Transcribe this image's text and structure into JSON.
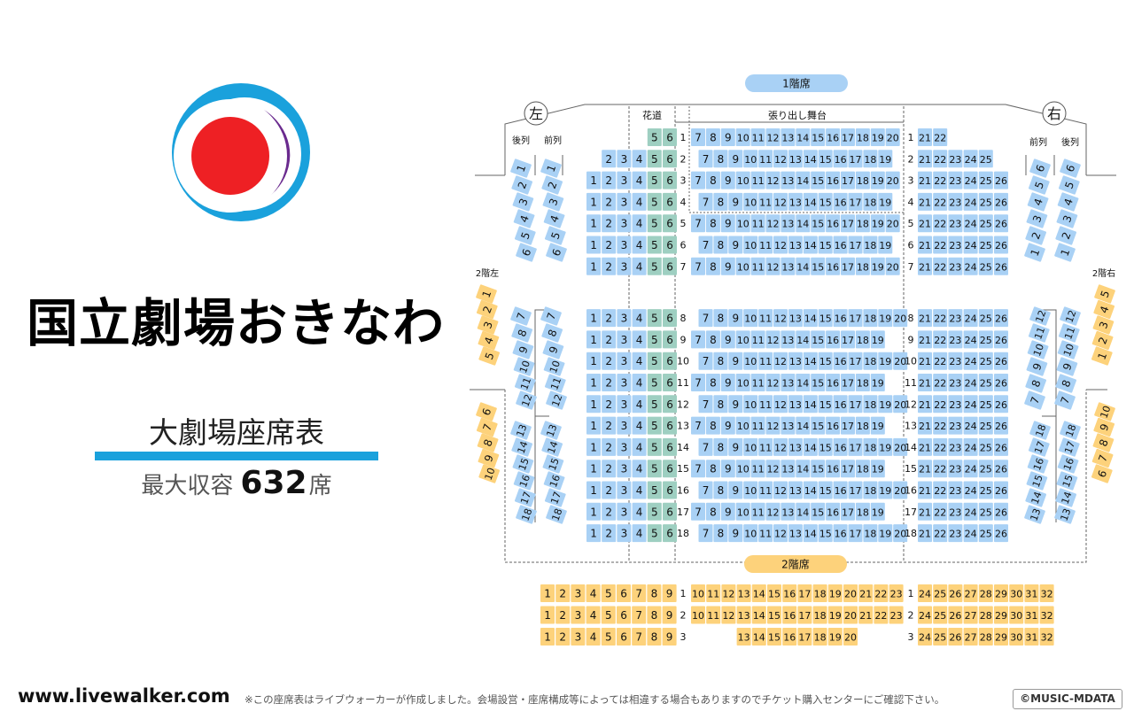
{
  "venue_name": "国立劇場おきなわ",
  "chart_title": "大劇場座席表",
  "capacity": {
    "label": "最大収容",
    "number": "632",
    "unit": "席"
  },
  "site": "www.livewalker.com",
  "note": "※この座席表はライブウォーカーが作成しました。会場設営・座席構成等によっては相違する場合もありますのでチケット購入センターにご確認下さい。",
  "copyright": "©MUSIC-MDATA",
  "colors": {
    "blue": "#a9d1f5",
    "teal": "#9ecfc1",
    "yellow": "#fdd27b",
    "logo_blue": "#1aa1dc",
    "logo_purple": "#6a2a8e",
    "logo_red": "#ee2024"
  },
  "labels": {
    "floor1": "1階席",
    "floor2": "2階席",
    "hanamichi": "花道",
    "stage": "張り出し舞台",
    "left": "左",
    "right": "右",
    "rear": "後列",
    "front": "前列",
    "floor2_left": "2階左",
    "floor2_right": "2階右"
  },
  "floor1_rows": [
    {
      "row": "1",
      "left": [
        "5",
        "6"
      ],
      "center": [
        "7",
        "8",
        "9",
        "10",
        "11",
        "12",
        "13",
        "14",
        "15",
        "16",
        "17",
        "18",
        "19",
        "20"
      ],
      "right": [
        "21",
        "22"
      ]
    },
    {
      "row": "2",
      "left": [
        "2",
        "3",
        "4",
        "5",
        "6"
      ],
      "center": [
        "7",
        "8",
        "9",
        "10",
        "11",
        "12",
        "13",
        "14",
        "15",
        "16",
        "17",
        "18",
        "19"
      ],
      "right": [
        "21",
        "22",
        "23",
        "24",
        "25"
      ]
    },
    {
      "row": "3",
      "left": [
        "1",
        "2",
        "3",
        "4",
        "5",
        "6"
      ],
      "center": [
        "7",
        "8",
        "9",
        "10",
        "11",
        "12",
        "13",
        "14",
        "15",
        "16",
        "17",
        "18",
        "19",
        "20"
      ],
      "right": [
        "21",
        "22",
        "23",
        "24",
        "25",
        "26"
      ]
    },
    {
      "row": "4",
      "left": [
        "1",
        "2",
        "3",
        "4",
        "5",
        "6"
      ],
      "center": [
        "7",
        "8",
        "9",
        "10",
        "11",
        "12",
        "13",
        "14",
        "15",
        "16",
        "17",
        "18",
        "19"
      ],
      "right": [
        "21",
        "22",
        "23",
        "24",
        "25",
        "26"
      ]
    },
    {
      "row": "5",
      "left": [
        "1",
        "2",
        "3",
        "4",
        "5",
        "6"
      ],
      "center": [
        "7",
        "8",
        "9",
        "10",
        "11",
        "12",
        "13",
        "14",
        "15",
        "16",
        "17",
        "18",
        "19",
        "20"
      ],
      "right": [
        "21",
        "22",
        "23",
        "24",
        "25",
        "26"
      ]
    },
    {
      "row": "6",
      "left": [
        "1",
        "2",
        "3",
        "4",
        "5",
        "6"
      ],
      "center": [
        "7",
        "8",
        "9",
        "10",
        "11",
        "12",
        "13",
        "14",
        "15",
        "16",
        "17",
        "18",
        "19"
      ],
      "right": [
        "21",
        "22",
        "23",
        "24",
        "25",
        "26"
      ]
    },
    {
      "row": "7",
      "left": [
        "1",
        "2",
        "3",
        "4",
        "5",
        "6"
      ],
      "center": [
        "7",
        "8",
        "9",
        "10",
        "11",
        "12",
        "13",
        "14",
        "15",
        "16",
        "17",
        "18",
        "19",
        "20"
      ],
      "right": [
        "21",
        "22",
        "23",
        "24",
        "25",
        "26"
      ]
    },
    {
      "row": "8",
      "left": [
        "1",
        "2",
        "3",
        "4",
        "5",
        "6"
      ],
      "center": [
        "7",
        "8",
        "9",
        "10",
        "11",
        "12",
        "13",
        "14",
        "15",
        "16",
        "17",
        "18",
        "19",
        "20"
      ],
      "right": [
        "21",
        "22",
        "23",
        "24",
        "25",
        "26"
      ]
    },
    {
      "row": "9",
      "left": [
        "1",
        "2",
        "3",
        "4",
        "5",
        "6"
      ],
      "center": [
        "7",
        "8",
        "9",
        "10",
        "11",
        "12",
        "13",
        "14",
        "15",
        "16",
        "17",
        "18",
        "19"
      ],
      "right": [
        "21",
        "22",
        "23",
        "24",
        "25",
        "26"
      ]
    },
    {
      "row": "10",
      "left": [
        "1",
        "2",
        "3",
        "4",
        "5",
        "6"
      ],
      "center": [
        "7",
        "8",
        "9",
        "10",
        "11",
        "12",
        "13",
        "14",
        "15",
        "16",
        "17",
        "18",
        "19",
        "20"
      ],
      "right": [
        "21",
        "22",
        "23",
        "24",
        "25",
        "26"
      ]
    },
    {
      "row": "11",
      "left": [
        "1",
        "2",
        "3",
        "4",
        "5",
        "6"
      ],
      "center": [
        "7",
        "8",
        "9",
        "10",
        "11",
        "12",
        "13",
        "14",
        "15",
        "16",
        "17",
        "18",
        "19"
      ],
      "right": [
        "21",
        "22",
        "23",
        "24",
        "25",
        "26"
      ]
    },
    {
      "row": "12",
      "left": [
        "1",
        "2",
        "3",
        "4",
        "5",
        "6"
      ],
      "center": [
        "7",
        "8",
        "9",
        "10",
        "11",
        "12",
        "13",
        "14",
        "15",
        "16",
        "17",
        "18",
        "19",
        "20"
      ],
      "right": [
        "21",
        "22",
        "23",
        "24",
        "25",
        "26"
      ]
    },
    {
      "row": "13",
      "left": [
        "1",
        "2",
        "3",
        "4",
        "5",
        "6"
      ],
      "center": [
        "7",
        "8",
        "9",
        "10",
        "11",
        "12",
        "13",
        "14",
        "15",
        "16",
        "17",
        "18",
        "19"
      ],
      "right": [
        "21",
        "22",
        "23",
        "24",
        "25",
        "26"
      ]
    },
    {
      "row": "14",
      "left": [
        "1",
        "2",
        "3",
        "4",
        "5",
        "6"
      ],
      "center": [
        "7",
        "8",
        "9",
        "10",
        "11",
        "12",
        "13",
        "14",
        "15",
        "16",
        "17",
        "18",
        "19",
        "20"
      ],
      "right": [
        "21",
        "22",
        "23",
        "24",
        "25",
        "26"
      ]
    },
    {
      "row": "15",
      "left": [
        "1",
        "2",
        "3",
        "4",
        "5",
        "6"
      ],
      "center": [
        "7",
        "8",
        "9",
        "10",
        "11",
        "12",
        "13",
        "14",
        "15",
        "16",
        "17",
        "18",
        "19"
      ],
      "right": [
        "21",
        "22",
        "23",
        "24",
        "25",
        "26"
      ]
    },
    {
      "row": "16",
      "left": [
        "1",
        "2",
        "3",
        "4",
        "5",
        "6"
      ],
      "center": [
        "7",
        "8",
        "9",
        "10",
        "11",
        "12",
        "13",
        "14",
        "15",
        "16",
        "17",
        "18",
        "19",
        "20"
      ],
      "right": [
        "21",
        "22",
        "23",
        "24",
        "25",
        "26"
      ]
    },
    {
      "row": "17",
      "left": [
        "1",
        "2",
        "3",
        "4",
        "5",
        "6"
      ],
      "center": [
        "7",
        "8",
        "9",
        "10",
        "11",
        "12",
        "13",
        "14",
        "15",
        "16",
        "17",
        "18",
        "19"
      ],
      "right": [
        "21",
        "22",
        "23",
        "24",
        "25",
        "26"
      ]
    },
    {
      "row": "18",
      "left": [
        "1",
        "2",
        "3",
        "4",
        "5",
        "6"
      ],
      "center": [
        "7",
        "8",
        "9",
        "10",
        "11",
        "12",
        "13",
        "14",
        "15",
        "16",
        "17",
        "18",
        "19",
        "20"
      ],
      "right": [
        "21",
        "22",
        "23",
        "24",
        "25",
        "26"
      ]
    }
  ],
  "floor2_rows": [
    {
      "row": "1",
      "left": [
        "1",
        "2",
        "3",
        "4",
        "5",
        "6",
        "7",
        "8",
        "9"
      ],
      "center": [
        "10",
        "11",
        "12",
        "13",
        "14",
        "15",
        "16",
        "17",
        "18",
        "19",
        "20",
        "21",
        "22",
        "23"
      ],
      "right": [
        "24",
        "25",
        "26",
        "27",
        "28",
        "29",
        "30",
        "31",
        "32"
      ]
    },
    {
      "row": "2",
      "left": [
        "1",
        "2",
        "3",
        "4",
        "5",
        "6",
        "7",
        "8",
        "9"
      ],
      "center": [
        "10",
        "11",
        "12",
        "13",
        "14",
        "15",
        "16",
        "17",
        "18",
        "19",
        "20",
        "21",
        "22",
        "23"
      ],
      "right": [
        "24",
        "25",
        "26",
        "27",
        "28",
        "29",
        "30",
        "31",
        "32"
      ]
    },
    {
      "row": "3",
      "left": [
        "1",
        "2",
        "3",
        "4",
        "5",
        "6",
        "7",
        "8",
        "9"
      ],
      "center": [
        "13",
        "14",
        "15",
        "16",
        "17",
        "18",
        "19",
        "20"
      ],
      "right": [
        "24",
        "25",
        "26",
        "27",
        "28",
        "29",
        "30",
        "31",
        "32"
      ]
    }
  ],
  "box_seats": {
    "left_rear": [
      [
        "1",
        "2",
        "3",
        "4",
        "5",
        "6"
      ],
      [
        "7",
        "8",
        "9",
        "10",
        "11",
        "12"
      ],
      [
        "13",
        "14",
        "15",
        "16",
        "17",
        "18"
      ]
    ],
    "left_front": [
      [
        "1",
        "2",
        "3",
        "4",
        "5",
        "6"
      ],
      [
        "7",
        "8",
        "9",
        "10",
        "11",
        "12"
      ],
      [
        "13",
        "14",
        "15",
        "16",
        "17",
        "18"
      ]
    ],
    "right_front": [
      [
        "1",
        "2",
        "3",
        "4",
        "5",
        "6"
      ],
      [
        "7",
        "8",
        "9",
        "10",
        "11",
        "12"
      ],
      [
        "13",
        "14",
        "15",
        "16",
        "17",
        "18"
      ]
    ],
    "right_rear": [
      [
        "1",
        "2",
        "3",
        "4",
        "5",
        "6"
      ],
      [
        "7",
        "8",
        "9",
        "10",
        "11",
        "12"
      ],
      [
        "13",
        "14",
        "15",
        "16",
        "17",
        "18"
      ]
    ],
    "floor2_left": [
      [
        "1",
        "2",
        "3",
        "4",
        "5"
      ],
      [
        "6",
        "7",
        "8",
        "9",
        "10"
      ]
    ],
    "floor2_right": [
      [
        "1",
        "2",
        "3",
        "4",
        "5"
      ],
      [
        "6",
        "7",
        "8",
        "9",
        "10"
      ]
    ]
  }
}
